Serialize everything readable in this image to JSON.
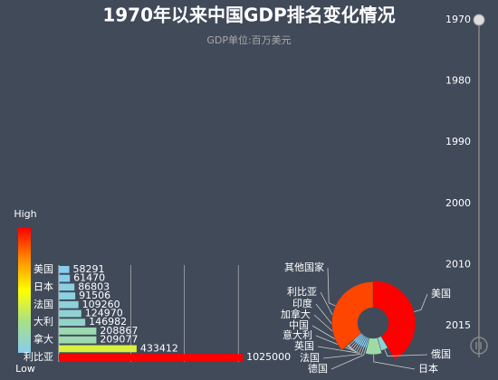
{
  "title": "1970年以来中国GDP排名变化情况",
  "subtitle": "GDP单位:百万美元",
  "timeline": {
    "years": [
      1970,
      1980,
      1990,
      2000,
      2010,
      2015
    ],
    "current": 0
  },
  "visual_map": {
    "labels": [
      "High",
      "Low"
    ],
    "colors": [
      "#ff0000",
      "#ff8c00",
      "#ffff00",
      "#a8e08a",
      "#87cdef"
    ]
  },
  "chart_data": [
    {
      "type": "bar",
      "categories": [
        "利比亚",
        null,
        "拿大",
        null,
        "大利",
        null,
        "法国",
        null,
        "日本",
        null,
        "美国"
      ],
      "values": [
        1025000,
        433412,
        209077,
        208867,
        146982,
        124970,
        109260,
        91506,
        86803,
        61470,
        58291
      ],
      "xlim": [
        0,
        1100000
      ],
      "xticks": [
        400000,
        700000,
        1000000
      ],
      "grid": true
    },
    {
      "type": "pie",
      "categories": [
        "美国",
        "俄国",
        "日本",
        "德国",
        "法国",
        "英国",
        "意大利",
        "中国",
        "加拿大",
        "印度",
        "利比亚",
        "其他国家"
      ],
      "values": [
        1025000,
        100000,
        209077,
        30000,
        30000,
        30000,
        30000,
        30000,
        30000,
        30000,
        30000,
        900000
      ]
    }
  ]
}
